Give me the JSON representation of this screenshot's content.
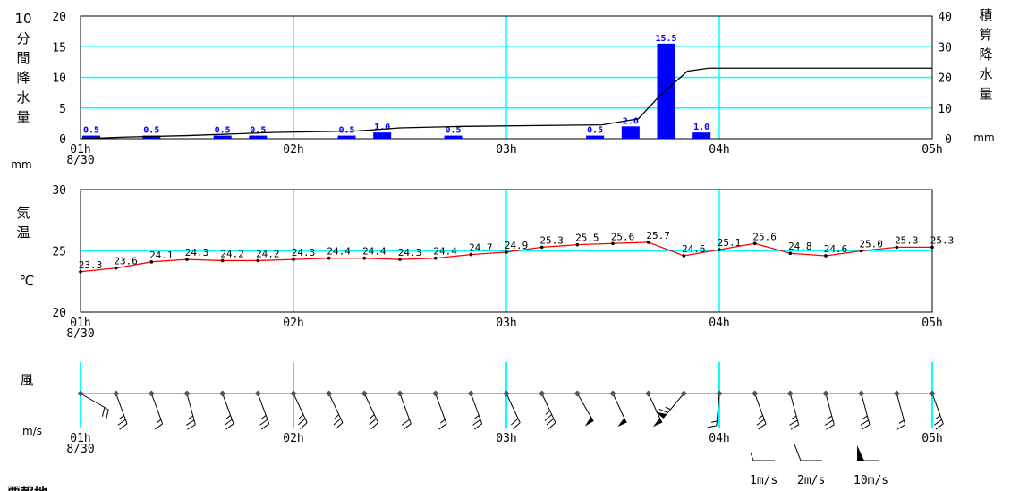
{
  "chart_data": [
    {
      "type": "bar",
      "name": "precipitation",
      "ylabel_left": [
        "10",
        "分",
        "間",
        "降",
        "水",
        "量"
      ],
      "ylabel_left_unit": "mm",
      "ylabel_right": [
        "積",
        "算",
        "降",
        "水",
        "量"
      ],
      "ylabel_right_unit": "mm",
      "ylim": [
        0,
        20
      ],
      "yticks": [
        "0",
        "5",
        "10",
        "15",
        "20"
      ],
      "y2lim": [
        0,
        40
      ],
      "y2ticks": [
        "0",
        "10",
        "20",
        "30",
        "40"
      ],
      "xticks": [
        "01h",
        "02h",
        "03h",
        "04h",
        "05h"
      ],
      "date_label": "8/30",
      "bar_color": "#0000ff",
      "bars": [
        {
          "t": 1.0,
          "v": 0.5,
          "label": "0.5"
        },
        {
          "t": 1.3333,
          "v": 0.5,
          "label": "0.5"
        },
        {
          "t": 1.6667,
          "v": 0.5,
          "label": "0.5"
        },
        {
          "t": 1.8333,
          "v": 0.5,
          "label": "0.5"
        },
        {
          "t": 2.25,
          "v": 0.5,
          "label": "0.5"
        },
        {
          "t": 2.4167,
          "v": 1.0,
          "label": "1.0"
        },
        {
          "t": 2.75,
          "v": 0.5,
          "label": "0.5"
        },
        {
          "t": 3.4167,
          "v": 0.5,
          "label": "0.5"
        },
        {
          "t": 3.5833,
          "v": 2.0,
          "label": "2.0"
        },
        {
          "t": 3.75,
          "v": 15.5,
          "label": "15.5"
        },
        {
          "t": 3.9167,
          "v": 1.0,
          "label": "1.0"
        }
      ],
      "cumulative": [
        {
          "t": 1.0,
          "v": 0.0
        },
        {
          "t": 1.2,
          "v": 0.5
        },
        {
          "t": 1.5,
          "v": 1.0
        },
        {
          "t": 1.7,
          "v": 1.5
        },
        {
          "t": 1.9,
          "v": 2.0
        },
        {
          "t": 2.3,
          "v": 2.5
        },
        {
          "t": 2.5,
          "v": 3.5
        },
        {
          "t": 2.8,
          "v": 4.0
        },
        {
          "t": 3.45,
          "v": 4.5
        },
        {
          "t": 3.62,
          "v": 6.5
        },
        {
          "t": 3.72,
          "v": 14.0
        },
        {
          "t": 3.85,
          "v": 22.0
        },
        {
          "t": 3.95,
          "v": 23.0
        },
        {
          "t": 5.0,
          "v": 23.0
        }
      ]
    },
    {
      "type": "line",
      "name": "temperature",
      "ylabel": [
        "気",
        "温"
      ],
      "unit": "℃",
      "ylim": [
        20,
        30
      ],
      "yticks": [
        "20",
        "25",
        "30"
      ],
      "xticks": [
        "01h",
        "02h",
        "03h",
        "04h",
        "05h"
      ],
      "date_label": "8/30",
      "line_color": "#ff0000",
      "points": [
        {
          "t": 1.0,
          "v": 23.3,
          "label": "23.3"
        },
        {
          "t": 1.1667,
          "v": 23.6,
          "label": "23.6"
        },
        {
          "t": 1.3333,
          "v": 24.1,
          "label": "24.1"
        },
        {
          "t": 1.5,
          "v": 24.3,
          "label": "24.3"
        },
        {
          "t": 1.6667,
          "v": 24.2,
          "label": "24.2"
        },
        {
          "t": 1.8333,
          "v": 24.2,
          "label": "24.2"
        },
        {
          "t": 2.0,
          "v": 24.3,
          "label": "24.3"
        },
        {
          "t": 2.1667,
          "v": 24.4,
          "label": "24.4"
        },
        {
          "t": 2.3333,
          "v": 24.4,
          "label": "24.4"
        },
        {
          "t": 2.5,
          "v": 24.3,
          "label": "24.3"
        },
        {
          "t": 2.6667,
          "v": 24.4,
          "label": "24.4"
        },
        {
          "t": 2.8333,
          "v": 24.7,
          "label": "24.7"
        },
        {
          "t": 3.0,
          "v": 24.9,
          "label": "24.9"
        },
        {
          "t": 3.1667,
          "v": 25.3,
          "label": "25.3"
        },
        {
          "t": 3.3333,
          "v": 25.5,
          "label": "25.5"
        },
        {
          "t": 3.5,
          "v": 25.6,
          "label": "25.6"
        },
        {
          "t": 3.6667,
          "v": 25.7,
          "label": "25.7"
        },
        {
          "t": 3.8333,
          "v": 24.6,
          "label": "24.6"
        },
        {
          "t": 4.0,
          "v": 25.1,
          "label": "25.1"
        },
        {
          "t": 4.1667,
          "v": 25.6,
          "label": "25.6"
        },
        {
          "t": 4.3333,
          "v": 24.8,
          "label": "24.8"
        },
        {
          "t": 4.5,
          "v": 24.6,
          "label": "24.6"
        },
        {
          "t": 4.6667,
          "v": 25.0,
          "label": "25.0"
        },
        {
          "t": 4.8333,
          "v": 25.3,
          "label": "25.3"
        },
        {
          "t": 5.0,
          "v": 25.3,
          "label": "25.3"
        }
      ]
    },
    {
      "type": "wind-barbs",
      "name": "wind",
      "ylabel": "風",
      "unit": "m/s",
      "xticks": [
        "01h",
        "02h",
        "03h",
        "04h",
        "05h"
      ],
      "date_label": "8/30",
      "legend": [
        {
          "label": "1m/s",
          "kind": "half"
        },
        {
          "label": "2m/s",
          "kind": "full"
        },
        {
          "label": "10m/s",
          "kind": "pennant"
        }
      ],
      "observations": [
        {
          "t": 1.0,
          "dir_deg": 300,
          "speed": 4
        },
        {
          "t": 1.1667,
          "dir_deg": 340,
          "speed": 5
        },
        {
          "t": 1.3333,
          "dir_deg": 340,
          "speed": 3
        },
        {
          "t": 1.5,
          "dir_deg": 345,
          "speed": 5
        },
        {
          "t": 1.6667,
          "dir_deg": 340,
          "speed": 5
        },
        {
          "t": 1.8333,
          "dir_deg": 340,
          "speed": 5
        },
        {
          "t": 2.0,
          "dir_deg": 335,
          "speed": 5
        },
        {
          "t": 2.1667,
          "dir_deg": 335,
          "speed": 5
        },
        {
          "t": 2.3333,
          "dir_deg": 335,
          "speed": 5
        },
        {
          "t": 2.5,
          "dir_deg": 340,
          "speed": 4
        },
        {
          "t": 2.6667,
          "dir_deg": 340,
          "speed": 3
        },
        {
          "t": 2.8333,
          "dir_deg": 340,
          "speed": 5
        },
        {
          "t": 3.0,
          "dir_deg": 335,
          "speed": 4
        },
        {
          "t": 3.1667,
          "dir_deg": 335,
          "speed": 7
        },
        {
          "t": 3.3333,
          "dir_deg": 330,
          "speed": 10
        },
        {
          "t": 3.5,
          "dir_deg": 335,
          "speed": 10
        },
        {
          "t": 3.6667,
          "dir_deg": 335,
          "speed": 10
        },
        {
          "t": 3.8333,
          "dir_deg": 40,
          "speed": 13
        },
        {
          "t": 4.0,
          "dir_deg": 5,
          "speed": 3
        },
        {
          "t": 4.1667,
          "dir_deg": 340,
          "speed": 5
        },
        {
          "t": 4.3333,
          "dir_deg": 345,
          "speed": 5
        },
        {
          "t": 4.5,
          "dir_deg": 345,
          "speed": 5
        },
        {
          "t": 4.6667,
          "dir_deg": 345,
          "speed": 5
        },
        {
          "t": 4.8333,
          "dir_deg": 345,
          "speed": 3
        },
        {
          "t": 5.0,
          "dir_deg": 340,
          "speed": 5
        }
      ]
    }
  ],
  "footer_heading": "要報地"
}
